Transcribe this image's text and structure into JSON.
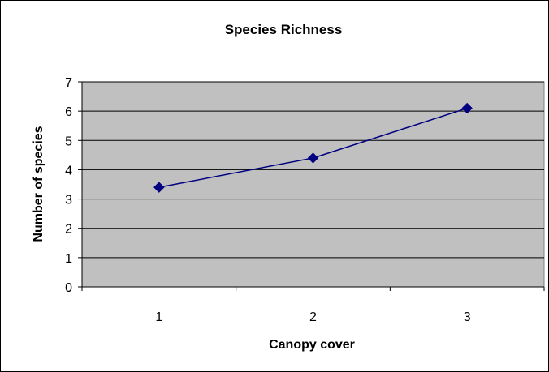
{
  "chart_data": {
    "type": "line",
    "title": "Species Richness",
    "xlabel": "Canopy cover",
    "ylabel": "Number of species",
    "categories": [
      "1",
      "2",
      "3"
    ],
    "series": [
      {
        "values": [
          3.4,
          4.4,
          6.1
        ],
        "color": "#000080",
        "marker": "diamond"
      }
    ],
    "ylim": [
      0,
      7
    ],
    "yticks": [
      0,
      1,
      2,
      3,
      4,
      5,
      6,
      7
    ],
    "grid": true,
    "plot_background": "#c0c0c0",
    "legend": "none"
  }
}
